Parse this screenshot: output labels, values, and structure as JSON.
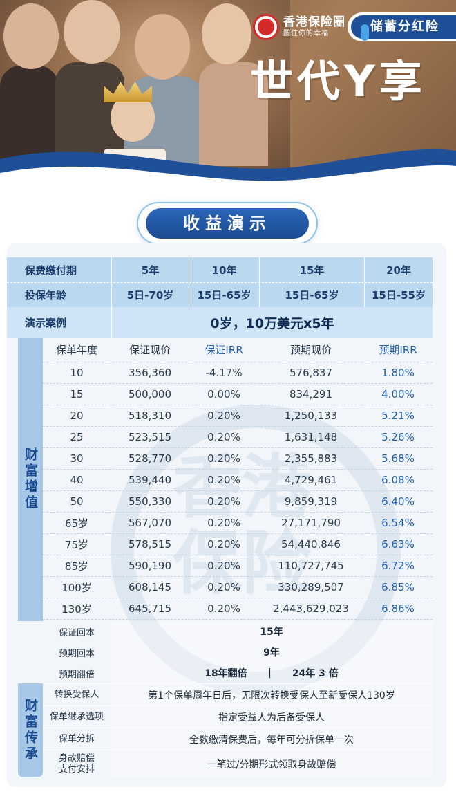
{
  "brand": {
    "logo_seal_text": "香港保险",
    "logo_title": "香港保险圈",
    "logo_subtitle": "圆住你的幸福"
  },
  "hero": {
    "product_type": "储蓄分红险",
    "product_name": "世代Y享"
  },
  "section_title": "收益演示",
  "plan_table": {
    "row_payment_label": "保费缴付期",
    "row_age_label": "投保年龄",
    "row_case_label": "演示案例",
    "terms": [
      {
        "period": "5年",
        "age": "5日-70岁"
      },
      {
        "period": "10年",
        "age": "15日-65岁"
      },
      {
        "period": "15年",
        "age": "15日-65岁"
      },
      {
        "period": "20年",
        "age": "15日-55岁"
      }
    ],
    "case_value": "0岁，10万美元x5年"
  },
  "wealth_growth": {
    "category": "财富增值",
    "headers": [
      "保单年度",
      "保证现价",
      "保证IRR",
      "预期现价",
      "预期IRR"
    ],
    "rows": [
      [
        "10",
        "356,360",
        "-4.17%",
        "576,837",
        "1.80%"
      ],
      [
        "15",
        "500,000",
        "0.00%",
        "834,291",
        "4.00%"
      ],
      [
        "20",
        "518,310",
        "0.20%",
        "1,250,133",
        "5.21%"
      ],
      [
        "25",
        "523,515",
        "0.20%",
        "1,631,148",
        "5.26%"
      ],
      [
        "30",
        "528,770",
        "0.20%",
        "2,355,883",
        "5.68%"
      ],
      [
        "40",
        "539,440",
        "0.20%",
        "4,729,461",
        "6.08%"
      ],
      [
        "50",
        "550,330",
        "0.20%",
        "9,859,319",
        "6.40%"
      ],
      [
        "65岁",
        "567,070",
        "0.20%",
        "27,171,790",
        "6.54%"
      ],
      [
        "75岁",
        "578,515",
        "0.20%",
        "54,440,846",
        "6.63%"
      ],
      [
        "85岁",
        "590,190",
        "0.20%",
        "110,727,745",
        "6.72%"
      ],
      [
        "100岁",
        "608,145",
        "0.20%",
        "330,289,507",
        "6.85%"
      ],
      [
        "130岁",
        "645,715",
        "0.20%",
        "2,443,629,023",
        "6.86%"
      ]
    ],
    "summary": [
      {
        "label": "保证回本",
        "value": "15年"
      },
      {
        "label": "预期回本",
        "value": "9年"
      },
      {
        "label": "预期翻倍",
        "value_a": "18年翻倍",
        "separator": "|",
        "value_b": "24年 3 倍"
      }
    ]
  },
  "wealth_transfer": {
    "category": "财富传承",
    "rows": [
      {
        "label": "转换受保人",
        "value": "第1个保单周年日后，无限次转换受保人至新受保人130岁"
      },
      {
        "label": "保单继承选项",
        "value": "指定受益人为后备受保人"
      },
      {
        "label": "保单分拆",
        "value": "全数缴清保费后，每年可分拆保单一次"
      },
      {
        "label_line1": "身故赔偿",
        "label_line2": "支付安排",
        "value": "一笔过/分期形式领取身故赔偿"
      }
    ]
  },
  "watermark_text": "香港保险",
  "colors": {
    "primary": "#1e4f97",
    "accent_light": "#bcd8ef",
    "irr_blue": "#1f5fb3",
    "card_bg": "#f2f5f9"
  }
}
